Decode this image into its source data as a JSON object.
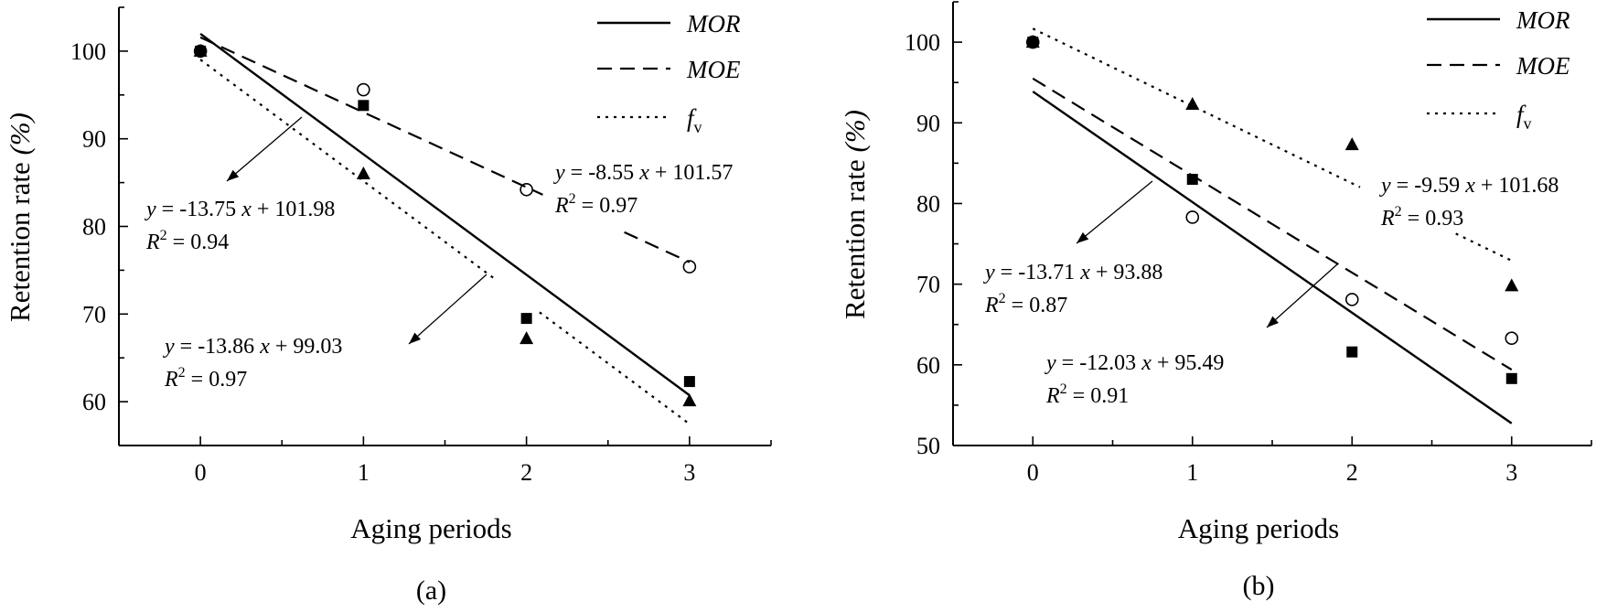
{
  "chart_data": [
    {
      "type": "scatter",
      "panel_label": "(a)",
      "xlabel": "Aging periods",
      "ylabel": "Retention rate (%)",
      "xlim": [
        -0.5,
        3.5
      ],
      "ylim": [
        55,
        105
      ],
      "x_ticks": [
        0,
        1,
        2,
        3
      ],
      "y_ticks": [
        60,
        70,
        80,
        90,
        100
      ],
      "legend_position": "top-right",
      "legend": [
        {
          "name": "MOR",
          "style": "solid"
        },
        {
          "name": "MOE",
          "style": "dashed"
        },
        {
          "name": "f",
          "sub": "v",
          "style": "dotted"
        }
      ],
      "series": [
        {
          "name": "MOR",
          "marker": "square-filled",
          "x": [
            0,
            1,
            2,
            3
          ],
          "y": [
            100,
            93.8,
            69.5,
            62.3
          ],
          "fit": {
            "slope": -13.75,
            "intercept": 101.98,
            "r2": 0.94
          }
        },
        {
          "name": "MOE",
          "marker": "circle-open",
          "x": [
            0,
            1,
            2,
            3
          ],
          "y": [
            100,
            95.6,
            84.2,
            75.4
          ],
          "fit": {
            "slope": -8.55,
            "intercept": 101.57,
            "r2": 0.97
          }
        },
        {
          "name": "fv",
          "marker": "triangle-filled",
          "x": [
            0,
            1,
            2,
            3
          ],
          "y": [
            100,
            86,
            67.2,
            60.1
          ],
          "fit": {
            "slope": -13.86,
            "intercept": 99.03,
            "r2": 0.97
          }
        }
      ],
      "annotations": [
        {
          "series": "MOR",
          "eq_a": "y = -13.75",
          "eq_b": "x + 101.98",
          "r2_val": " = 0.94"
        },
        {
          "series": "MOE",
          "eq_a": "y = -8.55",
          "eq_b": "x + 101.57",
          "r2_val": " = 0.97"
        },
        {
          "series": "fv",
          "eq_a": "y = -13.86",
          "eq_b": "x + 99.03",
          "r2_val": " = 0.97"
        }
      ]
    },
    {
      "type": "scatter",
      "panel_label": "(b)",
      "xlabel": "Aging periods",
      "ylabel": "Retention rate (%)",
      "xlim": [
        -0.5,
        3.5
      ],
      "ylim": [
        50,
        105
      ],
      "x_ticks": [
        0,
        1,
        2,
        3
      ],
      "y_ticks": [
        50,
        60,
        70,
        80,
        90,
        100
      ],
      "legend_position": "top-right",
      "legend": [
        {
          "name": "MOR",
          "style": "solid"
        },
        {
          "name": "MOE",
          "style": "dashed"
        },
        {
          "name": "f",
          "sub": "v",
          "style": "dotted"
        }
      ],
      "series": [
        {
          "name": "MOR",
          "marker": "square-filled",
          "x": [
            0,
            1,
            2,
            3
          ],
          "y": [
            100,
            83,
            61.6,
            58.3
          ],
          "fit": {
            "slope": -13.71,
            "intercept": 93.88,
            "r2": 0.87
          }
        },
        {
          "name": "MOE",
          "marker": "circle-open",
          "x": [
            0,
            1,
            2,
            3
          ],
          "y": [
            100,
            78.3,
            68.1,
            63.3
          ],
          "fit": {
            "slope": -12.03,
            "intercept": 95.49,
            "r2": 0.91
          }
        },
        {
          "name": "fv",
          "marker": "triangle-filled",
          "x": [
            0,
            1,
            2,
            3
          ],
          "y": [
            100,
            92.3,
            87.3,
            69.8
          ],
          "fit": {
            "slope": -9.59,
            "intercept": 101.68,
            "r2": 0.93
          }
        }
      ],
      "annotations": [
        {
          "series": "MOR",
          "eq_a": "y = -13.71",
          "eq_b": "x + 93.88",
          "r2_val": " = 0.87"
        },
        {
          "series": "MOE",
          "eq_a": "y = -12.03",
          "eq_b": "x + 95.49",
          "r2_val": " = 0.91"
        },
        {
          "series": "fv",
          "eq_a": "y = -9.59",
          "eq_b": "x + 101.68",
          "r2_val": " = 0.93"
        }
      ]
    }
  ]
}
